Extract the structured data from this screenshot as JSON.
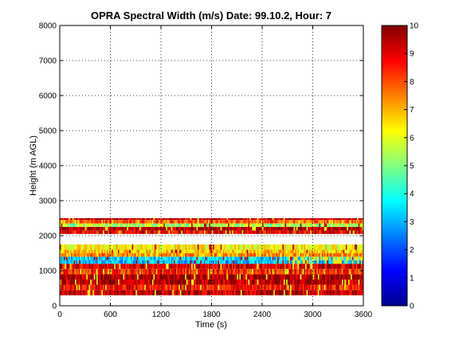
{
  "chart_data": {
    "type": "heatmap",
    "title": "OPRA Spectral Width (m/s)  Date: 99.10.2, Hour: 7",
    "xlabel": "Time (s)",
    "ylabel": "Height (m AGL)",
    "xlim": [
      0,
      3600
    ],
    "ylim": [
      0,
      8000
    ],
    "xticks": [
      0,
      600,
      1200,
      1800,
      2400,
      3000,
      3600
    ],
    "yticks": [
      0,
      1000,
      2000,
      3000,
      4000,
      5000,
      6000,
      7000,
      8000
    ],
    "grid": true,
    "colormap": "jet",
    "colorbar": {
      "range": [
        0,
        10
      ],
      "ticks": [
        0,
        1,
        2,
        3,
        4,
        5,
        6,
        7,
        8,
        9,
        10
      ]
    },
    "colorbar_colors": [
      "#00008f",
      "#0000ff",
      "#0080ff",
      "#00ffff",
      "#80ff80",
      "#ffff00",
      "#ff8000",
      "#ff0000",
      "#800000"
    ],
    "data_time_range": [
      0,
      3600
    ],
    "height_bands": [
      {
        "from": 300,
        "to": 450,
        "value": 9.5
      },
      {
        "from": 450,
        "to": 600,
        "value": 8.8
      },
      {
        "from": 600,
        "to": 750,
        "value": 9.6
      },
      {
        "from": 750,
        "to": 900,
        "value": 9.8
      },
      {
        "from": 900,
        "to": 1050,
        "value": 8.5
      },
      {
        "from": 1050,
        "to": 1200,
        "value": 9.2
      },
      {
        "from": 1200,
        "to": 1300,
        "value": 3.2
      },
      {
        "from": 1300,
        "to": 1400,
        "value": 3.5
      },
      {
        "from": 1400,
        "to": 1500,
        "value": 7.5
      },
      {
        "from": 1500,
        "to": 1600,
        "value": 6.8
      },
      {
        "from": 1600,
        "to": 1750,
        "value": 6.3
      },
      {
        "from": 2050,
        "to": 2150,
        "value": 9.0
      },
      {
        "from": 2150,
        "to": 2250,
        "value": 9.7
      },
      {
        "from": 2250,
        "to": 2350,
        "value": 5.5
      },
      {
        "from": 2350,
        "to": 2450,
        "value": 8.0
      },
      {
        "from": 2450,
        "to": 2500,
        "value": 9.3
      }
    ]
  }
}
